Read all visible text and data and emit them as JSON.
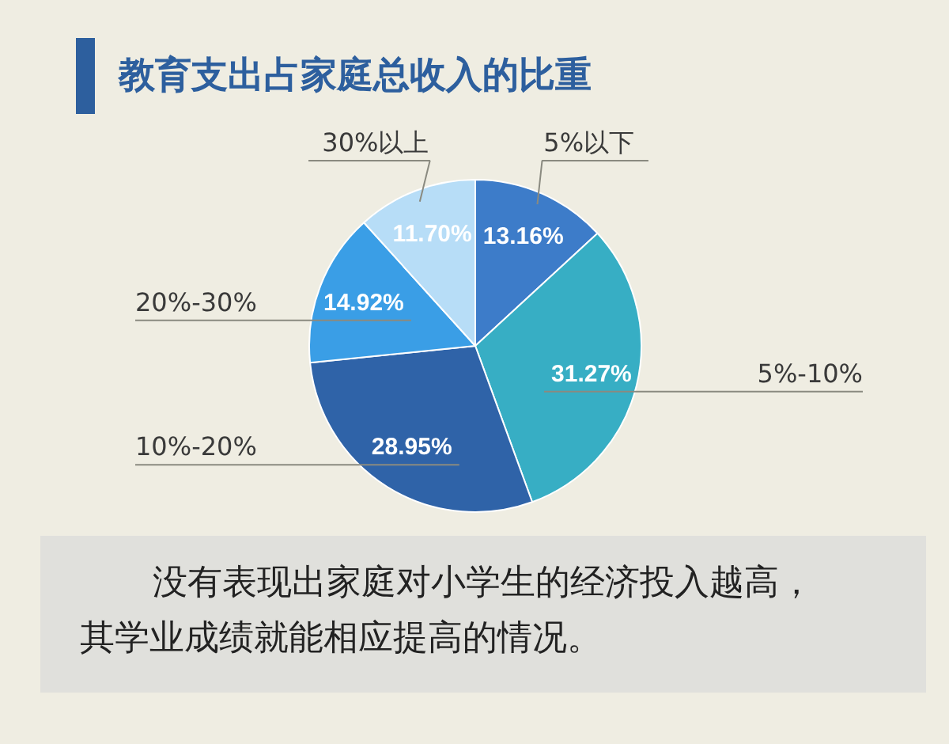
{
  "chart_data": {
    "type": "pie",
    "title": "教育支出占家庭总收入的比重",
    "categories": [
      "5%以下",
      "5%-10%",
      "10%-20%",
      "20%-30%",
      "30%以上"
    ],
    "values": [
      13.16,
      31.27,
      28.95,
      14.92,
      11.7
    ],
    "value_labels": [
      "13.16%",
      "31.27%",
      "28.95%",
      "14.92%",
      "11.70%"
    ],
    "colors": [
      "#3d7cc9",
      "#37aec4",
      "#2f63a8",
      "#3a9ee6",
      "#b7ddf7"
    ],
    "annotations": [
      "没有表现出家庭对小学生的经济投入越高，其学业成绩就能相应提高的情况。"
    ]
  }
}
